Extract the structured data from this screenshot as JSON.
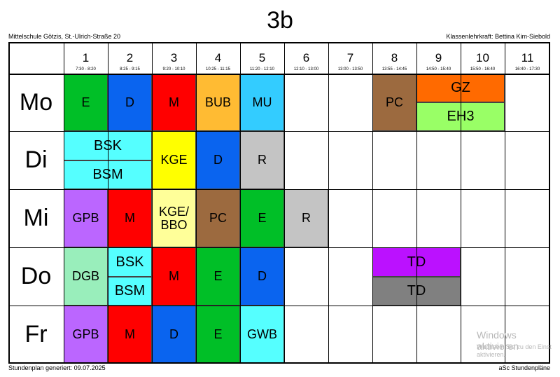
{
  "header": {
    "title": "3b",
    "school": "Mittelschule Götzis, St.-Ulrich-Straße 20",
    "teacher": "Klassenlehrkraft: Bettina Kim-Siebold"
  },
  "footer": {
    "generated": "Stundenplan generiert: 09.07.2025",
    "brand": "aSc Stundenpläne"
  },
  "periods": [
    {
      "num": "1",
      "time": "7:30 - 8:20"
    },
    {
      "num": "2",
      "time": "8:25 - 9:15"
    },
    {
      "num": "3",
      "time": "9:20 - 10:10"
    },
    {
      "num": "4",
      "time": "10:25 - 11:15"
    },
    {
      "num": "5",
      "time": "11:20 - 12:10"
    },
    {
      "num": "6",
      "time": "12:10 - 13:00"
    },
    {
      "num": "7",
      "time": "13:00 - 13:50"
    },
    {
      "num": "8",
      "time": "13:55 - 14:45"
    },
    {
      "num": "9",
      "time": "14:50 - 15:40"
    },
    {
      "num": "10",
      "time": "15:50 - 16:40"
    },
    {
      "num": "11",
      "time": "16:40 - 17:30"
    }
  ],
  "days": [
    "Mo",
    "Di",
    "Mi",
    "Do",
    "Fr"
  ],
  "lessons": [
    {
      "day": 0,
      "p": 1,
      "span": 1,
      "part": "full",
      "label": "E",
      "color": "#00bf27"
    },
    {
      "day": 0,
      "p": 2,
      "span": 1,
      "part": "full",
      "label": "D",
      "color": "#0a64ef"
    },
    {
      "day": 0,
      "p": 3,
      "span": 1,
      "part": "full",
      "label": "M",
      "color": "#ff0000"
    },
    {
      "day": 0,
      "p": 4,
      "span": 1,
      "part": "full",
      "label": "BUB",
      "color": "#ffbb33"
    },
    {
      "day": 0,
      "p": 5,
      "span": 1,
      "part": "full",
      "label": "MU",
      "color": "#33ccff"
    },
    {
      "day": 0,
      "p": 8,
      "span": 1,
      "part": "full",
      "label": "PC",
      "color": "#9c6a3f"
    },
    {
      "day": 0,
      "p": 9,
      "span": 2,
      "part": "top",
      "label": "GZ",
      "color": "#ff6a00"
    },
    {
      "day": 0,
      "p": 9,
      "span": 2,
      "part": "bottom",
      "label": "EH3",
      "color": "#99ff66"
    },
    {
      "day": 1,
      "p": 1,
      "span": 2,
      "part": "top",
      "label": "BSK",
      "color": "#55ffff"
    },
    {
      "day": 1,
      "p": 1,
      "span": 2,
      "part": "bottom",
      "label": "BSM",
      "color": "#55ffff"
    },
    {
      "day": 1,
      "p": 3,
      "span": 1,
      "part": "full",
      "label": "KGE",
      "color": "#ffff00"
    },
    {
      "day": 1,
      "p": 4,
      "span": 1,
      "part": "full",
      "label": "D",
      "color": "#0a64ef"
    },
    {
      "day": 1,
      "p": 5,
      "span": 1,
      "part": "full",
      "label": "R",
      "color": "#c4c4c4"
    },
    {
      "day": 2,
      "p": 1,
      "span": 1,
      "part": "full",
      "label": "GPB",
      "color": "#bb66ff"
    },
    {
      "day": 2,
      "p": 2,
      "span": 1,
      "part": "full",
      "label": "M",
      "color": "#ff0000"
    },
    {
      "day": 2,
      "p": 3,
      "span": 1,
      "part": "full",
      "label": "KGE/ BBO",
      "color": "#ffff99"
    },
    {
      "day": 2,
      "p": 4,
      "span": 1,
      "part": "full",
      "label": "PC",
      "color": "#9c6a3f"
    },
    {
      "day": 2,
      "p": 5,
      "span": 1,
      "part": "full",
      "label": "E",
      "color": "#00bf27"
    },
    {
      "day": 2,
      "p": 6,
      "span": 1,
      "part": "full",
      "label": "R",
      "color": "#c4c4c4"
    },
    {
      "day": 3,
      "p": 1,
      "span": 1,
      "part": "full",
      "label": "DGB",
      "color": "#99eebb"
    },
    {
      "day": 3,
      "p": 2,
      "span": 1,
      "part": "top",
      "label": "BSK",
      "color": "#55ffff"
    },
    {
      "day": 3,
      "p": 2,
      "span": 1,
      "part": "bottom",
      "label": "BSM",
      "color": "#55ffff"
    },
    {
      "day": 3,
      "p": 3,
      "span": 1,
      "part": "full",
      "label": "M",
      "color": "#ff0000"
    },
    {
      "day": 3,
      "p": 4,
      "span": 1,
      "part": "full",
      "label": "E",
      "color": "#00bf27"
    },
    {
      "day": 3,
      "p": 5,
      "span": 1,
      "part": "full",
      "label": "D",
      "color": "#0a64ef"
    },
    {
      "day": 3,
      "p": 8,
      "span": 2,
      "part": "top",
      "label": "TD",
      "color": "#bb11ff"
    },
    {
      "day": 3,
      "p": 8,
      "span": 2,
      "part": "bottom",
      "label": "TD",
      "color": "#808080"
    },
    {
      "day": 4,
      "p": 1,
      "span": 1,
      "part": "full",
      "label": "GPB",
      "color": "#bb66ff"
    },
    {
      "day": 4,
      "p": 2,
      "span": 1,
      "part": "full",
      "label": "M",
      "color": "#ff0000"
    },
    {
      "day": 4,
      "p": 3,
      "span": 1,
      "part": "full",
      "label": "D",
      "color": "#0a64ef"
    },
    {
      "day": 4,
      "p": 4,
      "span": 1,
      "part": "full",
      "label": "E",
      "color": "#00bf27"
    },
    {
      "day": 4,
      "p": 5,
      "span": 1,
      "part": "full",
      "label": "GWB",
      "color": "#55ffff"
    }
  ],
  "watermark": {
    "title": "Windows aktivieren",
    "line1": "Wechseln Sie zu den Einst",
    "line2": "aktivieren."
  }
}
